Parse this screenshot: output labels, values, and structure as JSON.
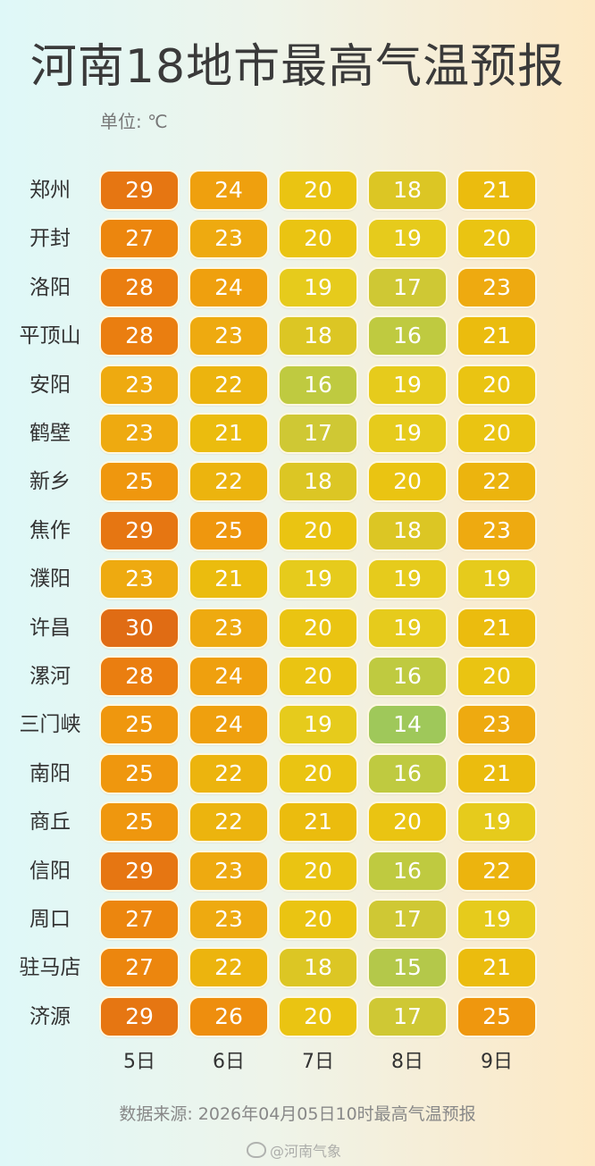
{
  "title": "河南18地市最高气温预报",
  "unit_label": "单位: ℃",
  "source": "数据来源: 2026年04月05日10时最高气温预报",
  "watermark": "@河南气象",
  "chart_data": {
    "type": "heatmap",
    "title": "河南18地市最高气温预报",
    "unit": "℃",
    "columns": [
      "5日",
      "6日",
      "7日",
      "8日",
      "9日"
    ],
    "rows": [
      {
        "city": "郑州",
        "values": [
          29,
          24,
          20,
          18,
          21
        ]
      },
      {
        "city": "开封",
        "values": [
          27,
          23,
          20,
          19,
          20
        ]
      },
      {
        "city": "洛阳",
        "values": [
          28,
          24,
          19,
          17,
          23
        ]
      },
      {
        "city": "平顶山",
        "values": [
          28,
          23,
          18,
          16,
          21
        ]
      },
      {
        "city": "安阳",
        "values": [
          23,
          22,
          16,
          19,
          20
        ]
      },
      {
        "city": "鹤壁",
        "values": [
          23,
          21,
          17,
          19,
          20
        ]
      },
      {
        "city": "新乡",
        "values": [
          25,
          22,
          18,
          20,
          22
        ]
      },
      {
        "city": "焦作",
        "values": [
          29,
          25,
          20,
          18,
          23
        ]
      },
      {
        "city": "濮阳",
        "values": [
          23,
          21,
          19,
          19,
          19
        ]
      },
      {
        "city": "许昌",
        "values": [
          30,
          23,
          20,
          19,
          21
        ]
      },
      {
        "city": "漯河",
        "values": [
          28,
          24,
          20,
          16,
          20
        ]
      },
      {
        "city": "三门峡",
        "values": [
          25,
          24,
          19,
          14,
          23
        ]
      },
      {
        "city": "南阳",
        "values": [
          25,
          22,
          20,
          16,
          21
        ]
      },
      {
        "city": "商丘",
        "values": [
          25,
          22,
          21,
          20,
          19
        ]
      },
      {
        "city": "信阳",
        "values": [
          29,
          23,
          20,
          16,
          22
        ]
      },
      {
        "city": "周口",
        "values": [
          27,
          23,
          20,
          17,
          19
        ]
      },
      {
        "city": "驻马店",
        "values": [
          27,
          22,
          18,
          15,
          21
        ]
      },
      {
        "city": "济源",
        "values": [
          29,
          26,
          20,
          17,
          25
        ]
      }
    ],
    "color_scale": {
      "14": "#9fc85a",
      "15": "#b4c84a",
      "16": "#bfca40",
      "17": "#cfc834",
      "18": "#dcc624",
      "19": "#e6cb1c",
      "20": "#eac412",
      "21": "#ebbc0e",
      "22": "#ecb40e",
      "23": "#eeaa10",
      "24": "#efa00e",
      "25": "#ef970e",
      "26": "#ee8e0e",
      "27": "#ec860e",
      "28": "#ea7e10",
      "29": "#e67612",
      "30": "#e06c14"
    }
  }
}
